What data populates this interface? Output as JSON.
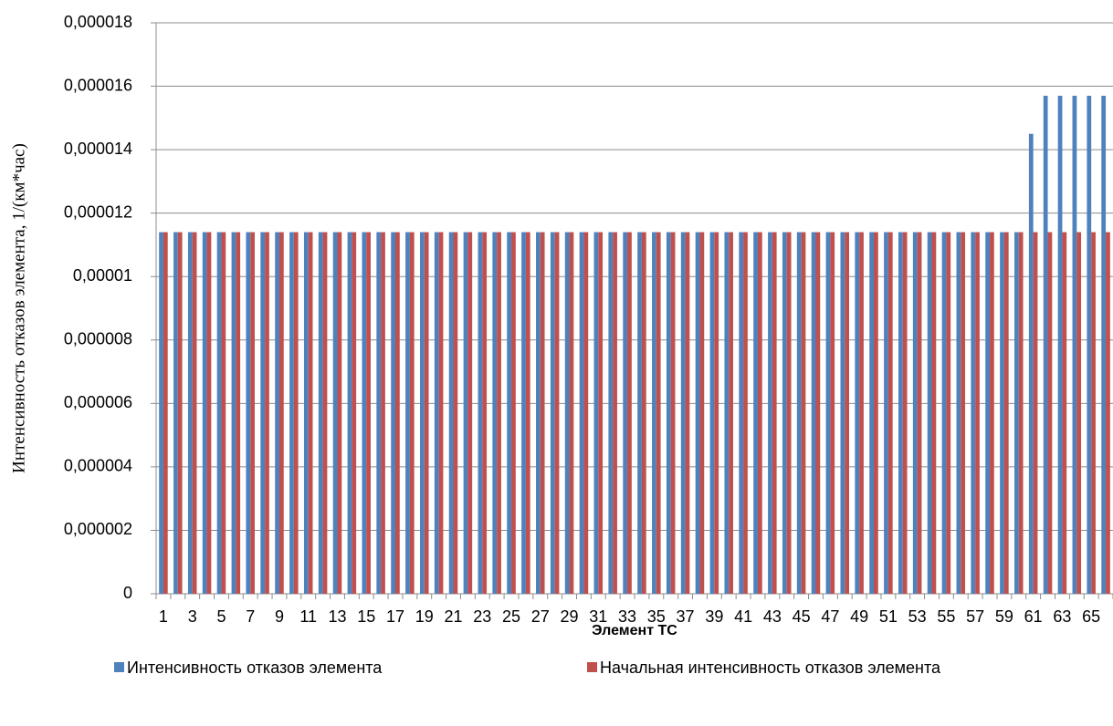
{
  "chart_data": {
    "type": "bar",
    "x_label": "Элемент ТС",
    "y_label": "Интенсивность отказов элемента, 1/(км*час)",
    "categories": [
      1,
      null,
      3,
      null,
      5,
      null,
      7,
      null,
      9,
      null,
      11,
      null,
      13,
      null,
      15,
      null,
      17,
      null,
      19,
      null,
      21,
      null,
      23,
      null,
      25,
      null,
      27,
      null,
      29,
      null,
      31,
      null,
      33,
      null,
      35,
      null,
      37,
      null,
      39,
      null,
      41,
      null,
      43,
      null,
      45,
      null,
      47,
      null,
      49,
      null,
      51,
      null,
      53,
      null,
      55,
      null,
      57,
      null,
      59,
      null,
      61,
      null,
      63,
      null,
      65,
      null
    ],
    "series": [
      {
        "name": "Интенсивность отказов элемента",
        "color": "#4f81bd",
        "values": [
          1.14e-05,
          1.14e-05,
          1.14e-05,
          1.14e-05,
          1.14e-05,
          1.14e-05,
          1.14e-05,
          1.14e-05,
          1.14e-05,
          1.14e-05,
          1.14e-05,
          1.14e-05,
          1.14e-05,
          1.14e-05,
          1.14e-05,
          1.14e-05,
          1.14e-05,
          1.14e-05,
          1.14e-05,
          1.14e-05,
          1.14e-05,
          1.14e-05,
          1.14e-05,
          1.14e-05,
          1.14e-05,
          1.14e-05,
          1.14e-05,
          1.14e-05,
          1.14e-05,
          1.14e-05,
          1.14e-05,
          1.14e-05,
          1.14e-05,
          1.14e-05,
          1.14e-05,
          1.14e-05,
          1.14e-05,
          1.14e-05,
          1.14e-05,
          1.14e-05,
          1.14e-05,
          1.14e-05,
          1.14e-05,
          1.14e-05,
          1.14e-05,
          1.14e-05,
          1.14e-05,
          1.14e-05,
          1.14e-05,
          1.14e-05,
          1.14e-05,
          1.14e-05,
          1.14e-05,
          1.14e-05,
          1.14e-05,
          1.14e-05,
          1.14e-05,
          1.14e-05,
          1.14e-05,
          1.14e-05,
          1.45e-05,
          1.57e-05,
          1.57e-05,
          1.57e-05,
          1.57e-05,
          1.57e-05
        ]
      },
      {
        "name": "Начальная интенсивность отказов элемента",
        "color": "#c0504d",
        "values": [
          1.14e-05,
          1.14e-05,
          1.14e-05,
          1.14e-05,
          1.14e-05,
          1.14e-05,
          1.14e-05,
          1.14e-05,
          1.14e-05,
          1.14e-05,
          1.14e-05,
          1.14e-05,
          1.14e-05,
          1.14e-05,
          1.14e-05,
          1.14e-05,
          1.14e-05,
          1.14e-05,
          1.14e-05,
          1.14e-05,
          1.14e-05,
          1.14e-05,
          1.14e-05,
          1.14e-05,
          1.14e-05,
          1.14e-05,
          1.14e-05,
          1.14e-05,
          1.14e-05,
          1.14e-05,
          1.14e-05,
          1.14e-05,
          1.14e-05,
          1.14e-05,
          1.14e-05,
          1.14e-05,
          1.14e-05,
          1.14e-05,
          1.14e-05,
          1.14e-05,
          1.14e-05,
          1.14e-05,
          1.14e-05,
          1.14e-05,
          1.14e-05,
          1.14e-05,
          1.14e-05,
          1.14e-05,
          1.14e-05,
          1.14e-05,
          1.14e-05,
          1.14e-05,
          1.14e-05,
          1.14e-05,
          1.14e-05,
          1.14e-05,
          1.14e-05,
          1.14e-05,
          1.14e-05,
          1.14e-05,
          1.14e-05,
          1.14e-05,
          1.14e-05,
          1.14e-05,
          1.14e-05,
          1.14e-05
        ]
      }
    ],
    "ylim": [
      0,
      1.8e-05
    ],
    "yticks": [
      0,
      {
        "value": 2e-06,
        "label": "0,000002"
      },
      {
        "value": 4e-06,
        "label": "0,000004"
      },
      {
        "value": 6e-06,
        "label": "0,000006"
      },
      {
        "value": 8e-06,
        "label": "0,000008"
      },
      {
        "value": 1e-05,
        "label": "0,00001"
      },
      {
        "value": 1.2e-05,
        "label": "0,000012"
      },
      {
        "value": 1.4e-05,
        "label": "0,000014"
      },
      {
        "value": 1.6e-05,
        "label": "0,000016"
      },
      {
        "value": 1.8e-05,
        "label": "0,000018"
      }
    ],
    "grid": true,
    "legend": "bottom"
  }
}
